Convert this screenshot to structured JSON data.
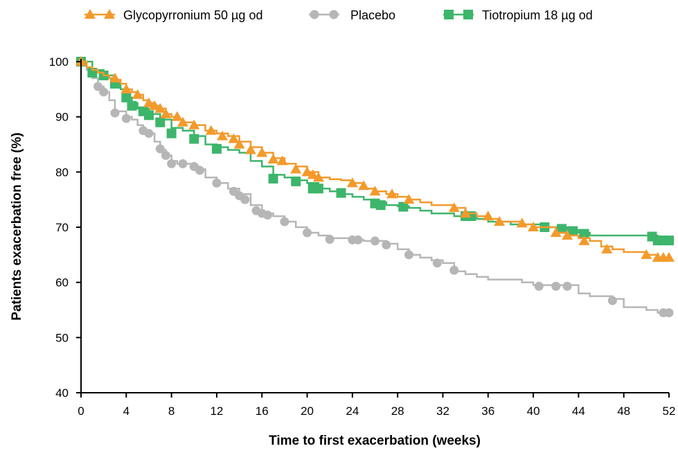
{
  "chart_data": {
    "type": "line",
    "title": "",
    "xlabel": "Time to first exacerbation (weeks)",
    "ylabel": "Patients exacerbation free (%)",
    "xlim": [
      0,
      52
    ],
    "ylim": [
      40,
      100
    ],
    "xticks": [
      0,
      4,
      8,
      12,
      16,
      20,
      24,
      28,
      32,
      36,
      40,
      44,
      48,
      52
    ],
    "yticks": [
      40,
      50,
      60,
      70,
      80,
      90,
      100
    ],
    "grid": false,
    "legend_position": "top",
    "series": [
      {
        "name": "Glycopyrronium 50 µg od",
        "color": "#f39a2b",
        "marker": "triangle",
        "points": [
          [
            0,
            100
          ],
          [
            0.5,
            99
          ],
          [
            1,
            98.5
          ],
          [
            1.5,
            98
          ],
          [
            2,
            97.5
          ],
          [
            2.5,
            97
          ],
          [
            3,
            96.7
          ],
          [
            3.5,
            96
          ],
          [
            4,
            95
          ],
          [
            4.5,
            94.5
          ],
          [
            5,
            94
          ],
          [
            5.5,
            93
          ],
          [
            6,
            92.5
          ],
          [
            6.5,
            92
          ],
          [
            7,
            91.5
          ],
          [
            7.5,
            90.5
          ],
          [
            8,
            90
          ],
          [
            8.5,
            89.5
          ],
          [
            9,
            89
          ],
          [
            10,
            88.5
          ],
          [
            11,
            87.5
          ],
          [
            12,
            87
          ],
          [
            13,
            86.5
          ],
          [
            14,
            85.5
          ],
          [
            15,
            84.5
          ],
          [
            16,
            83.5
          ],
          [
            17,
            82.5
          ],
          [
            18,
            81.5
          ],
          [
            19,
            81
          ],
          [
            20,
            80
          ],
          [
            21,
            79
          ],
          [
            22,
            78.7
          ],
          [
            23,
            78.5
          ],
          [
            24,
            78
          ],
          [
            25,
            77
          ],
          [
            26,
            76.5
          ],
          [
            27,
            76
          ],
          [
            28,
            75.5
          ],
          [
            29,
            75
          ],
          [
            30,
            74.5
          ],
          [
            31,
            74
          ],
          [
            32,
            74
          ],
          [
            33,
            73.5
          ],
          [
            34,
            72.5
          ],
          [
            35,
            72
          ],
          [
            36,
            71.5
          ],
          [
            37,
            71
          ],
          [
            38,
            71
          ],
          [
            39,
            70.5
          ],
          [
            40,
            70
          ],
          [
            41,
            70
          ],
          [
            42,
            69
          ],
          [
            43,
            68.5
          ],
          [
            44,
            68
          ],
          [
            45,
            67.5
          ],
          [
            46,
            66.5
          ],
          [
            47,
            66
          ],
          [
            48,
            65.5
          ],
          [
            49,
            65.5
          ],
          [
            50,
            65
          ],
          [
            51,
            64.5
          ],
          [
            52,
            64.5
          ]
        ],
        "markers": [
          [
            0,
            100
          ],
          [
            3,
            97
          ],
          [
            4,
            95
          ],
          [
            5,
            94
          ],
          [
            6,
            92.5
          ],
          [
            6.5,
            92
          ],
          [
            7,
            91.5
          ],
          [
            7.5,
            90.5
          ],
          [
            8.5,
            90
          ],
          [
            9,
            89
          ],
          [
            10,
            88.5
          ],
          [
            11.5,
            87.5
          ],
          [
            12.5,
            86.5
          ],
          [
            13.5,
            86
          ],
          [
            14,
            85
          ],
          [
            15,
            84
          ],
          [
            16,
            83.5
          ],
          [
            17,
            82.3
          ],
          [
            17.8,
            82
          ],
          [
            19,
            80.5
          ],
          [
            20,
            80
          ],
          [
            20.5,
            79.5
          ],
          [
            21,
            79
          ],
          [
            24,
            78
          ],
          [
            25,
            77.5
          ],
          [
            26,
            76.5
          ],
          [
            27.5,
            76
          ],
          [
            29,
            75
          ],
          [
            33,
            73.5
          ],
          [
            34,
            72.5
          ],
          [
            36,
            72
          ],
          [
            37,
            71
          ],
          [
            39,
            70.7
          ],
          [
            40,
            70
          ],
          [
            42,
            69
          ],
          [
            43,
            68.5
          ],
          [
            44.5,
            67.5
          ],
          [
            46.5,
            66
          ],
          [
            50,
            65
          ],
          [
            51,
            64.5
          ],
          [
            51.5,
            64.5
          ],
          [
            52,
            64.5
          ]
        ]
      },
      {
        "name": "Placebo",
        "color": "#b6b6b6",
        "marker": "circle",
        "points": [
          [
            0,
            100
          ],
          [
            0.5,
            98.5
          ],
          [
            1,
            97
          ],
          [
            1.5,
            95.5
          ],
          [
            2,
            94.5
          ],
          [
            2.5,
            93
          ],
          [
            3,
            91
          ],
          [
            4,
            90
          ],
          [
            4.5,
            89.5
          ],
          [
            5,
            88.5
          ],
          [
            5.5,
            87.5
          ],
          [
            6,
            87
          ],
          [
            6.5,
            85.5
          ],
          [
            7,
            84
          ],
          [
            7.5,
            83
          ],
          [
            8,
            82
          ],
          [
            8.5,
            81.5
          ],
          [
            9,
            81.5
          ],
          [
            10,
            81
          ],
          [
            10.5,
            80.5
          ],
          [
            11,
            79
          ],
          [
            12,
            78
          ],
          [
            13,
            77
          ],
          [
            14,
            76
          ],
          [
            15,
            74
          ],
          [
            16,
            72.5
          ],
          [
            17,
            72
          ],
          [
            18,
            71
          ],
          [
            19,
            70
          ],
          [
            20,
            69
          ],
          [
            21,
            68.5
          ],
          [
            22,
            68
          ],
          [
            24,
            67.7
          ],
          [
            25,
            67.5
          ],
          [
            26,
            67.5
          ],
          [
            27,
            67
          ],
          [
            28,
            66
          ],
          [
            29,
            65
          ],
          [
            30,
            64.5
          ],
          [
            31,
            64
          ],
          [
            32,
            63.5
          ],
          [
            33,
            62
          ],
          [
            34,
            61.5
          ],
          [
            35,
            61
          ],
          [
            36,
            60.5
          ],
          [
            38,
            60.5
          ],
          [
            39,
            60
          ],
          [
            40,
            59.5
          ],
          [
            41,
            59.5
          ],
          [
            43,
            59.5
          ],
          [
            44,
            58
          ],
          [
            45,
            57.5
          ],
          [
            47,
            57
          ],
          [
            48,
            55.5
          ],
          [
            50,
            55
          ],
          [
            51,
            54.5
          ],
          [
            52,
            54.5
          ]
        ],
        "markers": [
          [
            0,
            100
          ],
          [
            1.5,
            95.5
          ],
          [
            2,
            94.5
          ],
          [
            3,
            90.7
          ],
          [
            4,
            89.7
          ],
          [
            5.5,
            87.5
          ],
          [
            6,
            87
          ],
          [
            7,
            84.2
          ],
          [
            7.5,
            83
          ],
          [
            8,
            81.5
          ],
          [
            9,
            81.5
          ],
          [
            10,
            81
          ],
          [
            10.5,
            80.3
          ],
          [
            12,
            78
          ],
          [
            13.5,
            76.5
          ],
          [
            14,
            75.7
          ],
          [
            14.5,
            75
          ],
          [
            15.5,
            73
          ],
          [
            16,
            72.5
          ],
          [
            16.5,
            72.2
          ],
          [
            18,
            71
          ],
          [
            20,
            69
          ],
          [
            22,
            67.8
          ],
          [
            24,
            67.7
          ],
          [
            24.5,
            67.7
          ],
          [
            26,
            67.5
          ],
          [
            27,
            66.8
          ],
          [
            29,
            65
          ],
          [
            31.5,
            63.5
          ],
          [
            33,
            62.2
          ],
          [
            40.5,
            59.3
          ],
          [
            42,
            59.3
          ],
          [
            43,
            59.3
          ],
          [
            47,
            56.7
          ],
          [
            51.5,
            54.5
          ],
          [
            52,
            54.5
          ]
        ]
      },
      {
        "name": "Tiotropium 18 µg od",
        "color": "#3db56b",
        "marker": "square",
        "points": [
          [
            0,
            100
          ],
          [
            1,
            98.5
          ],
          [
            2,
            97.5
          ],
          [
            3,
            96
          ],
          [
            3.5,
            95
          ],
          [
            4,
            93.5
          ],
          [
            4.5,
            92.5
          ],
          [
            5,
            91.5
          ],
          [
            6,
            90.5
          ],
          [
            7,
            89.5
          ],
          [
            8,
            88
          ],
          [
            9,
            87.5
          ],
          [
            10,
            86.5
          ],
          [
            11,
            85
          ],
          [
            12,
            84.5
          ],
          [
            13,
            84
          ],
          [
            14,
            83.5
          ],
          [
            15,
            82
          ],
          [
            16,
            81
          ],
          [
            17,
            79.5
          ],
          [
            18,
            79
          ],
          [
            19,
            78.5
          ],
          [
            20,
            78
          ],
          [
            21,
            77
          ],
          [
            22,
            76.5
          ],
          [
            23,
            76
          ],
          [
            24,
            75.5
          ],
          [
            25,
            75
          ],
          [
            26,
            74.5
          ],
          [
            27,
            74
          ],
          [
            28,
            73.8
          ],
          [
            29,
            73.5
          ],
          [
            30,
            73
          ],
          [
            31,
            72.5
          ],
          [
            32,
            72.5
          ],
          [
            33,
            72
          ],
          [
            34,
            72
          ],
          [
            35,
            71.5
          ],
          [
            36,
            71
          ],
          [
            37,
            71
          ],
          [
            38,
            70.5
          ],
          [
            39,
            70.5
          ],
          [
            40,
            70.5
          ],
          [
            41,
            70
          ],
          [
            42,
            70
          ],
          [
            43,
            69.5
          ],
          [
            44,
            69
          ],
          [
            45,
            68.5
          ],
          [
            46,
            68.5
          ],
          [
            47,
            68.5
          ],
          [
            48,
            68.5
          ],
          [
            49,
            68.5
          ],
          [
            50,
            68.5
          ],
          [
            51,
            67.7
          ],
          [
            52,
            67.7
          ]
        ],
        "markers": [
          [
            0,
            100
          ],
          [
            1,
            98
          ],
          [
            2,
            97.5
          ],
          [
            3,
            96
          ],
          [
            4,
            93.5
          ],
          [
            4.5,
            92
          ],
          [
            5.5,
            91
          ],
          [
            6,
            90.3
          ],
          [
            7,
            89
          ],
          [
            8,
            87
          ],
          [
            10,
            86
          ],
          [
            12,
            84.2
          ],
          [
            17,
            78.8
          ],
          [
            19,
            78.3
          ],
          [
            20.5,
            77
          ],
          [
            21,
            77
          ],
          [
            23,
            76.2
          ],
          [
            26,
            74.3
          ],
          [
            26.5,
            74
          ],
          [
            28.5,
            73.7
          ],
          [
            34,
            72
          ],
          [
            34.5,
            72
          ],
          [
            41,
            70
          ],
          [
            42.5,
            69.7
          ],
          [
            43.5,
            69.3
          ],
          [
            44.5,
            68.8
          ],
          [
            50.5,
            68.3
          ],
          [
            51,
            67.6
          ],
          [
            51.5,
            67.6
          ],
          [
            52,
            67.6
          ]
        ]
      }
    ]
  }
}
